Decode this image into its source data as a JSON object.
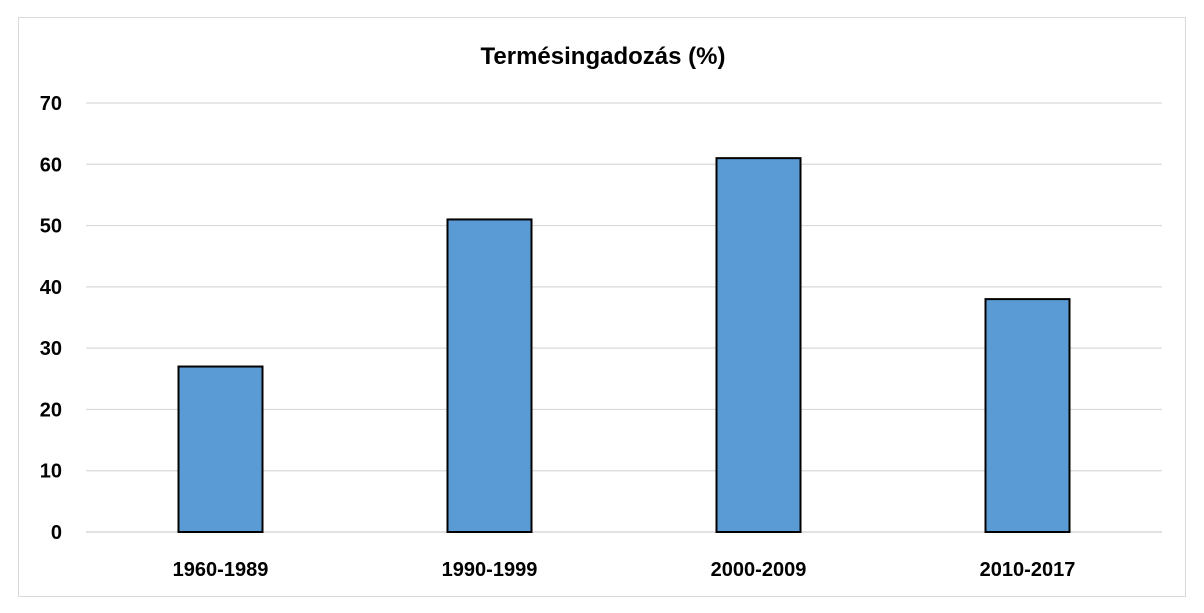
{
  "chart_data": {
    "type": "bar",
    "title": "Termésingadozás (%)",
    "xlabel": "",
    "ylabel": "",
    "categories": [
      "1960-1989",
      "1990-1999",
      "2000-2009",
      "2010-2017"
    ],
    "values": [
      27,
      51,
      61,
      38
    ],
    "ylim": [
      0,
      70
    ],
    "yticks": [
      0,
      10,
      20,
      30,
      40,
      50,
      60,
      70
    ],
    "grid": true,
    "legend": "none",
    "bar_color": "#5b9bd5",
    "bar_edge_color": "#000000",
    "grid_color": "#d9d9d9"
  }
}
